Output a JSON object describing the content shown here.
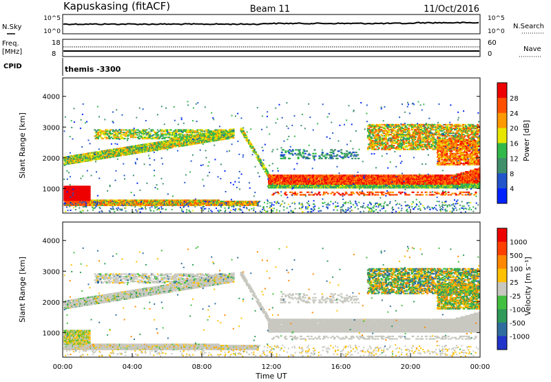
{
  "header": {
    "station": "Kapuskasing (fitACF)",
    "beam": "Beam 11",
    "date": "11/Oct/2016"
  },
  "top_panels": {
    "nsky_label": "N.Sky",
    "nsky_ticks": [
      "10^5",
      "10^0"
    ],
    "nsearch_label": "N.Search",
    "nsearch_ticks": [
      "10^5",
      "10^0"
    ],
    "freq_label": "Freq.",
    "freq_unit": "[MHz]",
    "freq_ticks": [
      "18",
      "8"
    ],
    "nave_label": "Nave",
    "nave_ticks": [
      "60",
      "0"
    ],
    "cpid_label": "CPID",
    "cpid_value": "themis -3300"
  },
  "chart_data": [
    {
      "type": "heatmap",
      "name": "power-panel",
      "ylabel": "Slant Range [km]",
      "yticks": [
        1000,
        2000,
        3000,
        4000
      ],
      "ylim": [
        200,
        4600
      ],
      "xlim": [
        0,
        24
      ],
      "colorbar": {
        "label": "Power [dB]",
        "ticks": [
          "4",
          "8",
          "12",
          "16",
          "20",
          "24",
          "28"
        ],
        "colors": [
          "#0022ff",
          "#2255cc",
          "#3f8f6a",
          "#33b84a",
          "#e6e600",
          "#ff9900",
          "#ff5000",
          "#ee0000"
        ]
      }
    },
    {
      "type": "heatmap",
      "name": "velocity-panel",
      "ylabel": "Slant Range [km]",
      "yticks": [
        1000,
        2000,
        3000,
        4000
      ],
      "ylim": [
        200,
        4600
      ],
      "xlim": [
        0,
        24
      ],
      "colorbar": {
        "label": "Velocity [m s⁻¹]",
        "ticks": [
          "1000",
          "500",
          "100",
          "25",
          "-25",
          "-100",
          "-500",
          "-1000"
        ],
        "colors": [
          "#2233cc",
          "#2f6d9e",
          "#2f9a5a",
          "#44c040",
          "#c8c8c0",
          "#ffc000",
          "#ff8800",
          "#ff4000",
          "#ee0000"
        ]
      }
    }
  ],
  "time_axis": {
    "label": "Time UT",
    "ticks": [
      "00:00",
      "04:00",
      "08:00",
      "12:00",
      "16:00",
      "20:00",
      "00:00"
    ]
  }
}
